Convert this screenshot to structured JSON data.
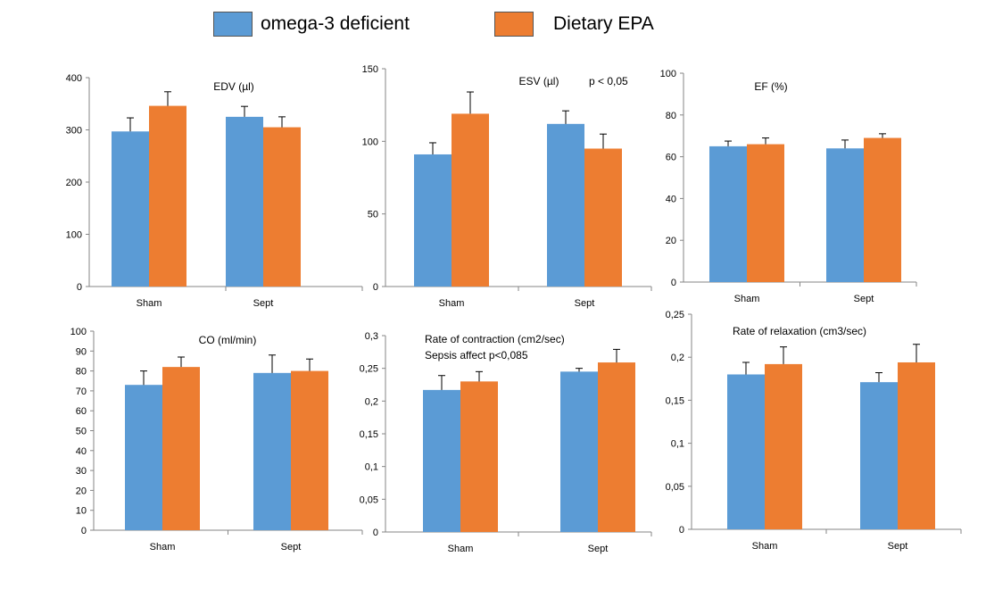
{
  "legend": {
    "items": [
      {
        "label": "omega-3 deficient",
        "color": "#5b9bd5"
      },
      {
        "label": "Dietary EPA",
        "color": "#ed7d31"
      }
    ]
  },
  "chart_data": [
    {
      "type": "bar",
      "title": "EDV (µl)",
      "annotation": "",
      "categories": [
        "Sham",
        "Sept"
      ],
      "series": [
        {
          "name": "omega-3 deficient",
          "values": [
            297,
            325
          ],
          "errors": [
            26,
            20
          ]
        },
        {
          "name": "Dietary EPA",
          "values": [
            346,
            305
          ],
          "errors": [
            27,
            20
          ]
        }
      ],
      "ylim": [
        0,
        400
      ],
      "yticks": [
        0,
        100,
        200,
        300,
        400
      ],
      "ytick_labels": [
        "0",
        "100",
        "200",
        "300",
        "400"
      ]
    },
    {
      "type": "bar",
      "title": "ESV (µl)",
      "annotation": "p < 0,05",
      "categories": [
        "Sham",
        "Sept"
      ],
      "series": [
        {
          "name": "omega-3 deficient",
          "values": [
            91,
            112
          ],
          "errors": [
            8,
            9
          ]
        },
        {
          "name": "Dietary EPA",
          "values": [
            119,
            95
          ],
          "errors": [
            15,
            10
          ]
        }
      ],
      "ylim": [
        0,
        150
      ],
      "yticks": [
        0,
        50,
        100,
        150
      ],
      "ytick_labels": [
        "0",
        "50",
        "100",
        "150"
      ]
    },
    {
      "type": "bar",
      "title": "EF (%)",
      "annotation": "",
      "categories": [
        "Sham",
        "Sept"
      ],
      "series": [
        {
          "name": "omega-3 deficient",
          "values": [
            65,
            64
          ],
          "errors": [
            2.5,
            4
          ]
        },
        {
          "name": "Dietary EPA",
          "values": [
            66,
            69
          ],
          "errors": [
            3,
            2
          ]
        }
      ],
      "ylim": [
        0,
        100
      ],
      "yticks": [
        0,
        20,
        40,
        60,
        80,
        100
      ],
      "ytick_labels": [
        "0",
        "20",
        "40",
        "60",
        "80",
        "100"
      ]
    },
    {
      "type": "bar",
      "title": "CO (ml/min)",
      "annotation": "",
      "categories": [
        "Sham",
        "Sept"
      ],
      "series": [
        {
          "name": "omega-3 deficient",
          "values": [
            73,
            79
          ],
          "errors": [
            7,
            9
          ]
        },
        {
          "name": "Dietary EPA",
          "values": [
            82,
            80
          ],
          "errors": [
            5,
            6
          ]
        }
      ],
      "ylim": [
        0,
        100
      ],
      "yticks": [
        0,
        10,
        20,
        30,
        40,
        50,
        60,
        70,
        80,
        90,
        100
      ],
      "ytick_labels": [
        "0",
        "10",
        "20",
        "30",
        "40",
        "50",
        "60",
        "70",
        "80",
        "90",
        "100"
      ]
    },
    {
      "type": "bar",
      "title": "Rate of contraction (cm2/sec)",
      "annotation": "Sepsis affect  p<0,085",
      "categories": [
        "Sham",
        "Sept"
      ],
      "series": [
        {
          "name": "omega-3 deficient",
          "values": [
            0.217,
            0.245
          ],
          "errors": [
            0.022,
            0.005
          ]
        },
        {
          "name": "Dietary EPA",
          "values": [
            0.23,
            0.259
          ],
          "errors": [
            0.015,
            0.02
          ]
        }
      ],
      "ylim": [
        0,
        0.3
      ],
      "yticks": [
        0,
        0.05,
        0.1,
        0.15,
        0.2,
        0.25,
        0.3
      ],
      "ytick_labels": [
        "0",
        "0,05",
        "0,1",
        "0,15",
        "0,2",
        "0,25",
        "0,3"
      ]
    },
    {
      "type": "bar",
      "title": "Rate of relaxation (cm3/sec)",
      "annotation": "",
      "categories": [
        "Sham",
        "Sept"
      ],
      "series": [
        {
          "name": "omega-3 deficient",
          "values": [
            0.18,
            0.171
          ],
          "errors": [
            0.014,
            0.011
          ]
        },
        {
          "name": "Dietary EPA",
          "values": [
            0.192,
            0.194
          ],
          "errors": [
            0.02,
            0.021
          ]
        }
      ],
      "ylim": [
        0,
        0.25
      ],
      "yticks": [
        0,
        0.05,
        0.1,
        0.15,
        0.2,
        0.25
      ],
      "ytick_labels": [
        "0",
        "0,05",
        "0,1",
        "0,15",
        "0,2",
        "0,25"
      ]
    }
  ]
}
